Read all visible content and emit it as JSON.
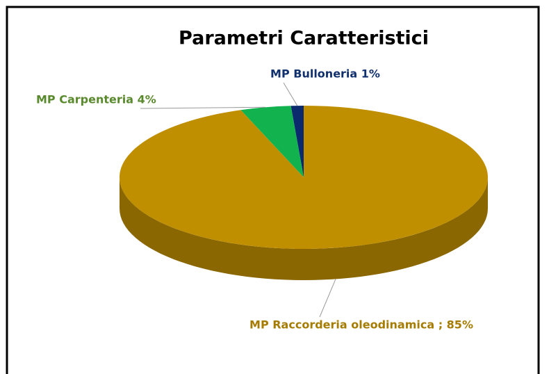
{
  "chart_data": {
    "type": "pie",
    "title": "Parametri Caratteristici",
    "labels": [
      "MP Bulloneria 1%",
      "MP Carpenteria 4%",
      "MP Raccorderia oleodinamica ; 85%"
    ],
    "values": [
      1,
      4,
      85
    ],
    "colors": [
      "#0b2a6e",
      "#12b34f",
      "#c08f00"
    ],
    "label_colors": [
      "#10306e",
      "#5a8a2e",
      "#a67c00"
    ]
  }
}
